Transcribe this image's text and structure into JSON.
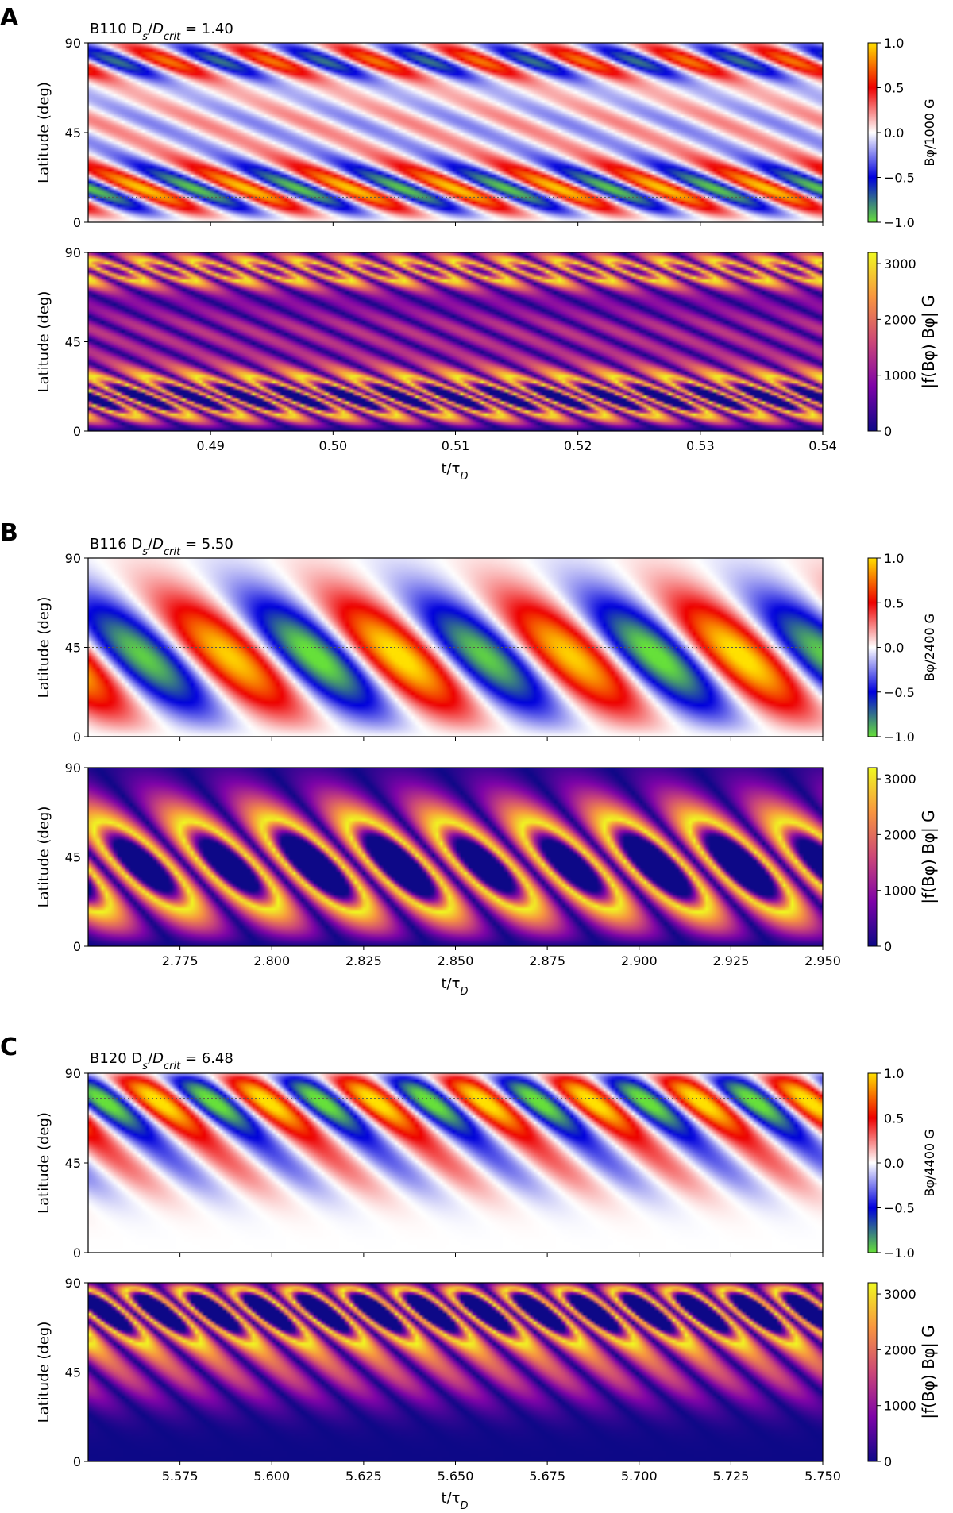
{
  "panels": [
    {
      "letter": "A",
      "title_main": "B110 D",
      "title_sub_s": "s",
      "title_slash": "/",
      "title_D": "D",
      "title_sub_crit": "crit",
      "title_value": " = 1.40",
      "x_ticks": [
        "0.49",
        "0.50",
        "0.51",
        "0.52",
        "0.53",
        "0.54"
      ],
      "top_cbar_label": "Bφ/1000 G",
      "bottom_cbar_label": "|f(Bφ) Bφ| G"
    },
    {
      "letter": "B",
      "title_main": "B116 D",
      "title_sub_s": "s",
      "title_slash": "/",
      "title_D": "D",
      "title_sub_crit": "crit",
      "title_value": " = 5.50",
      "x_ticks": [
        "2.775",
        "2.800",
        "2.825",
        "2.850",
        "2.875",
        "2.900",
        "2.925",
        "2.950"
      ],
      "top_cbar_label": "Bφ/2400 G",
      "bottom_cbar_label": "|f(Bφ) Bφ| G"
    },
    {
      "letter": "C",
      "title_main": "B120 D",
      "title_sub_s": "s",
      "title_slash": "/",
      "title_D": "D",
      "title_sub_crit": "crit",
      "title_value": " = 6.48",
      "x_ticks": [
        "5.575",
        "5.600",
        "5.625",
        "5.650",
        "5.675",
        "5.700",
        "5.725",
        "5.750"
      ],
      "top_cbar_label": "Bφ/4400 G",
      "bottom_cbar_label": "|f(Bφ) Bφ| G"
    }
  ],
  "y_label": "Latitude (deg)",
  "x_label": "t/τ",
  "x_label_sub": "D",
  "y_ticks": [
    "0",
    "45",
    "90"
  ],
  "top_cbar_ticks": [
    "1.0",
    "0.5",
    "0.0",
    "−0.5",
    "−1.0"
  ],
  "bottom_cbar_ticks": [
    "3000",
    "2000",
    "1000",
    "0"
  ],
  "chart_data": [
    {
      "type": "heatmap",
      "panel": "A",
      "subplot": "top",
      "xlabel": "t/τD",
      "ylabel": "Latitude (deg)",
      "xlim": [
        0.48,
        0.54
      ],
      "ylim": [
        0,
        90
      ],
      "colorbar_label": "Bφ/1000 G",
      "colorbar_range": [
        -1.0,
        1.0
      ],
      "colormap": [
        "#66e03a",
        "#0000dd",
        "#ffffff",
        "#ee0000",
        "#ffe000"
      ],
      "cycle_period": 0.0085,
      "contours": true
    },
    {
      "type": "heatmap",
      "panel": "A",
      "subplot": "bottom",
      "xlabel": "t/τD",
      "ylabel": "Latitude (deg)",
      "xlim": [
        0.48,
        0.54
      ],
      "ylim": [
        0,
        90
      ],
      "colorbar_label": "|f(Bφ) Bφ| G",
      "colorbar_range": [
        0,
        3200
      ],
      "colormap": [
        "#0d0887",
        "#7e03a8",
        "#cc4778",
        "#f89540",
        "#f0f921"
      ]
    },
    {
      "type": "heatmap",
      "panel": "B",
      "subplot": "top",
      "xlabel": "t/τD",
      "ylabel": "Latitude (deg)",
      "xlim": [
        2.75,
        2.95
      ],
      "ylim": [
        0,
        90
      ],
      "colorbar_label": "Bφ/2400 G",
      "colorbar_range": [
        -1.0,
        1.0
      ],
      "colormap": [
        "#66e03a",
        "#0000dd",
        "#ffffff",
        "#ee0000",
        "#ffe000"
      ],
      "cycle_period": 0.0465,
      "contours": true
    },
    {
      "type": "heatmap",
      "panel": "B",
      "subplot": "bottom",
      "xlabel": "t/τD",
      "ylabel": "Latitude (deg)",
      "xlim": [
        2.75,
        2.95
      ],
      "ylim": [
        0,
        90
      ],
      "colorbar_label": "|f(Bφ) Bφ| G",
      "colorbar_range": [
        0,
        3200
      ],
      "colormap": [
        "#0d0887",
        "#7e03a8",
        "#cc4778",
        "#f89540",
        "#f0f921"
      ]
    },
    {
      "type": "heatmap",
      "panel": "C",
      "subplot": "top",
      "xlabel": "t/τD",
      "ylabel": "Latitude (deg)",
      "xlim": [
        5.55,
        5.75
      ],
      "ylim": [
        0,
        90
      ],
      "colorbar_label": "Bφ/4400 G",
      "colorbar_range": [
        -1.0,
        1.0
      ],
      "colormap": [
        "#66e03a",
        "#0000dd",
        "#ffffff",
        "#ee0000",
        "#ffe000"
      ],
      "cycle_period": 0.0295,
      "contours": true
    },
    {
      "type": "heatmap",
      "panel": "C",
      "subplot": "bottom",
      "xlabel": "t/τD",
      "ylabel": "Latitude (deg)",
      "xlim": [
        5.55,
        5.75
      ],
      "ylim": [
        0,
        90
      ],
      "colorbar_label": "|f(Bφ) Bφ| G",
      "colorbar_range": [
        0,
        3200
      ],
      "colormap": [
        "#0d0887",
        "#7e03a8",
        "#cc4778",
        "#f89540",
        "#f0f921"
      ]
    }
  ]
}
